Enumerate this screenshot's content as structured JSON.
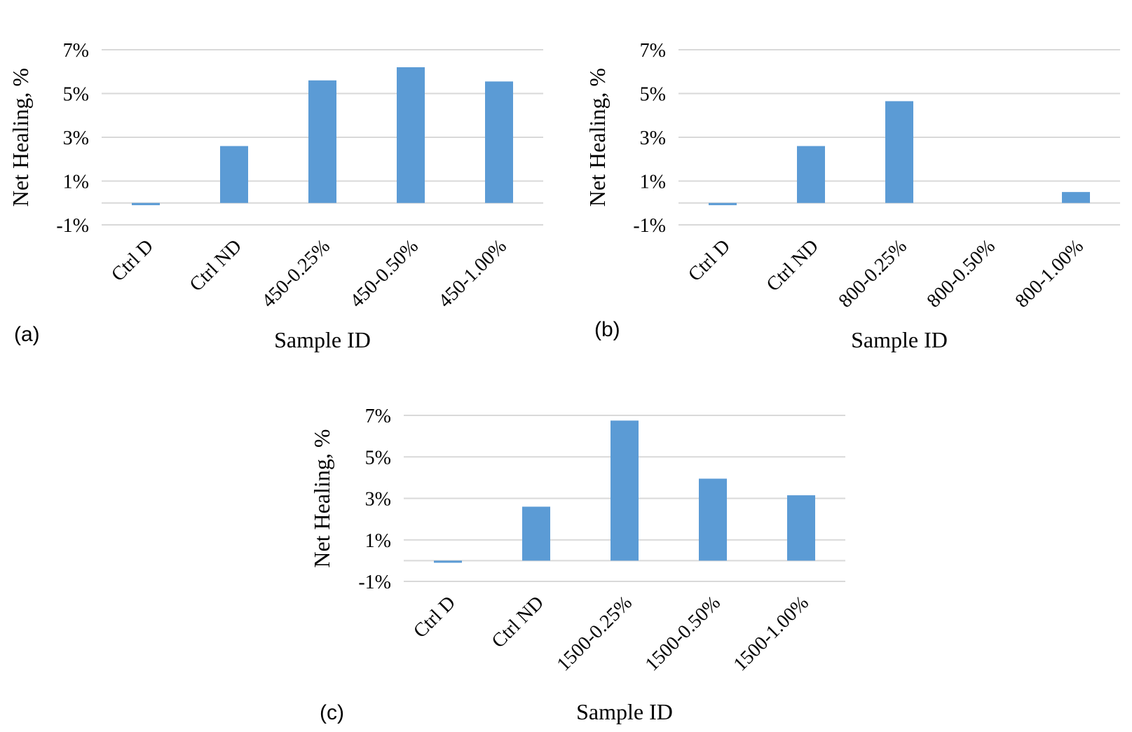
{
  "chart_data": [
    {
      "type": "bar",
      "panel_label": "(a)",
      "xlabel": "Sample ID",
      "ylabel": "Net Healing, %",
      "ylim": [
        -1,
        7
      ],
      "yticks": [
        "7%",
        "5%",
        "3%",
        "1%",
        "-1%"
      ],
      "categories": [
        "Ctrl D",
        "Ctrl ND",
        "450-0.25%",
        "450-0.50%",
        "450-1.00%"
      ],
      "values": [
        -0.1,
        2.6,
        5.6,
        6.2,
        5.55
      ],
      "grid": true,
      "bar_color": "#5b9bd5"
    },
    {
      "type": "bar",
      "panel_label": "(b)",
      "xlabel": "Sample ID",
      "ylabel": "Net Healing, %",
      "ylim": [
        -1,
        7
      ],
      "yticks": [
        "7%",
        "5%",
        "3%",
        "1%",
        "-1%"
      ],
      "categories": [
        "Ctrl D",
        "Ctrl ND",
        "800-0.25%",
        "800-0.50%",
        "800-1.00%"
      ],
      "values": [
        -0.1,
        2.6,
        4.65,
        0,
        0.5
      ],
      "grid": true,
      "bar_color": "#5b9bd5"
    },
    {
      "type": "bar",
      "panel_label": "(c)",
      "xlabel": "Sample ID",
      "ylabel": "Net Healing, %",
      "ylim": [
        -1,
        7
      ],
      "yticks": [
        "7%",
        "5%",
        "3%",
        "1%",
        "-1%"
      ],
      "categories": [
        "Ctrl D",
        "Ctrl ND",
        "1500-0.25%",
        "1500-0.50%",
        "1500-1.00%"
      ],
      "values": [
        -0.1,
        2.6,
        6.75,
        3.95,
        3.15
      ],
      "grid": true,
      "bar_color": "#5b9bd5"
    }
  ]
}
